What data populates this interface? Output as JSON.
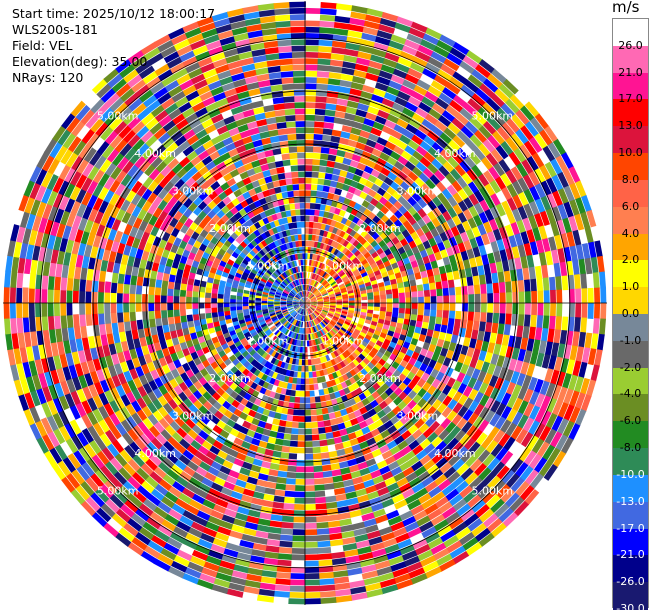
{
  "info": {
    "start_time": "Start time: 2025/10/12 18:00:17",
    "instrument": "WLS200s-181",
    "field": "Field: VEL",
    "elevation": "Elevation(deg): 35.00",
    "nrays": "NRays: 120"
  },
  "colorbar": {
    "unit": "m/s",
    "ticks": [
      "26.0",
      "21.0",
      "17.0",
      "13.0",
      "10.0",
      "8.0",
      "6.0",
      "4.0",
      "2.0",
      "1.0",
      "0.0",
      "-1.0",
      "-2.0",
      "-4.0",
      "-6.0",
      "-8.0",
      "-10.0",
      "-13.0",
      "-17.0",
      "-21.0",
      "-26.0",
      "-30.0"
    ],
    "colors": [
      "#ffffff",
      "#ff69b4",
      "#ff1493",
      "#ff0000",
      "#dc143c",
      "#ff4500",
      "#ff6347",
      "#ff7f50",
      "#ffa500",
      "#ffff00",
      "#ffd700",
      "#778899",
      "#696969",
      "#9acd32",
      "#6b8e23",
      "#228b22",
      "#2e8b57",
      "#1e90ff",
      "#4169e1",
      "#0000ff",
      "#00008b",
      "#191970"
    ]
  },
  "chart_data": {
    "type": "heatmap",
    "projection": "polar PPI",
    "n_rays": 120,
    "range_rings_km": [
      1,
      2,
      3,
      4,
      5
    ],
    "ring_labels": [
      "1.00km",
      "2.00km",
      "3.00km",
      "4.00km",
      "5.00km"
    ],
    "values_summary": "Near-range bins: positive (orange/red) velocities on the east side, negative (blue/green) on the west side; far-range bins noisy across full colour scale."
  }
}
